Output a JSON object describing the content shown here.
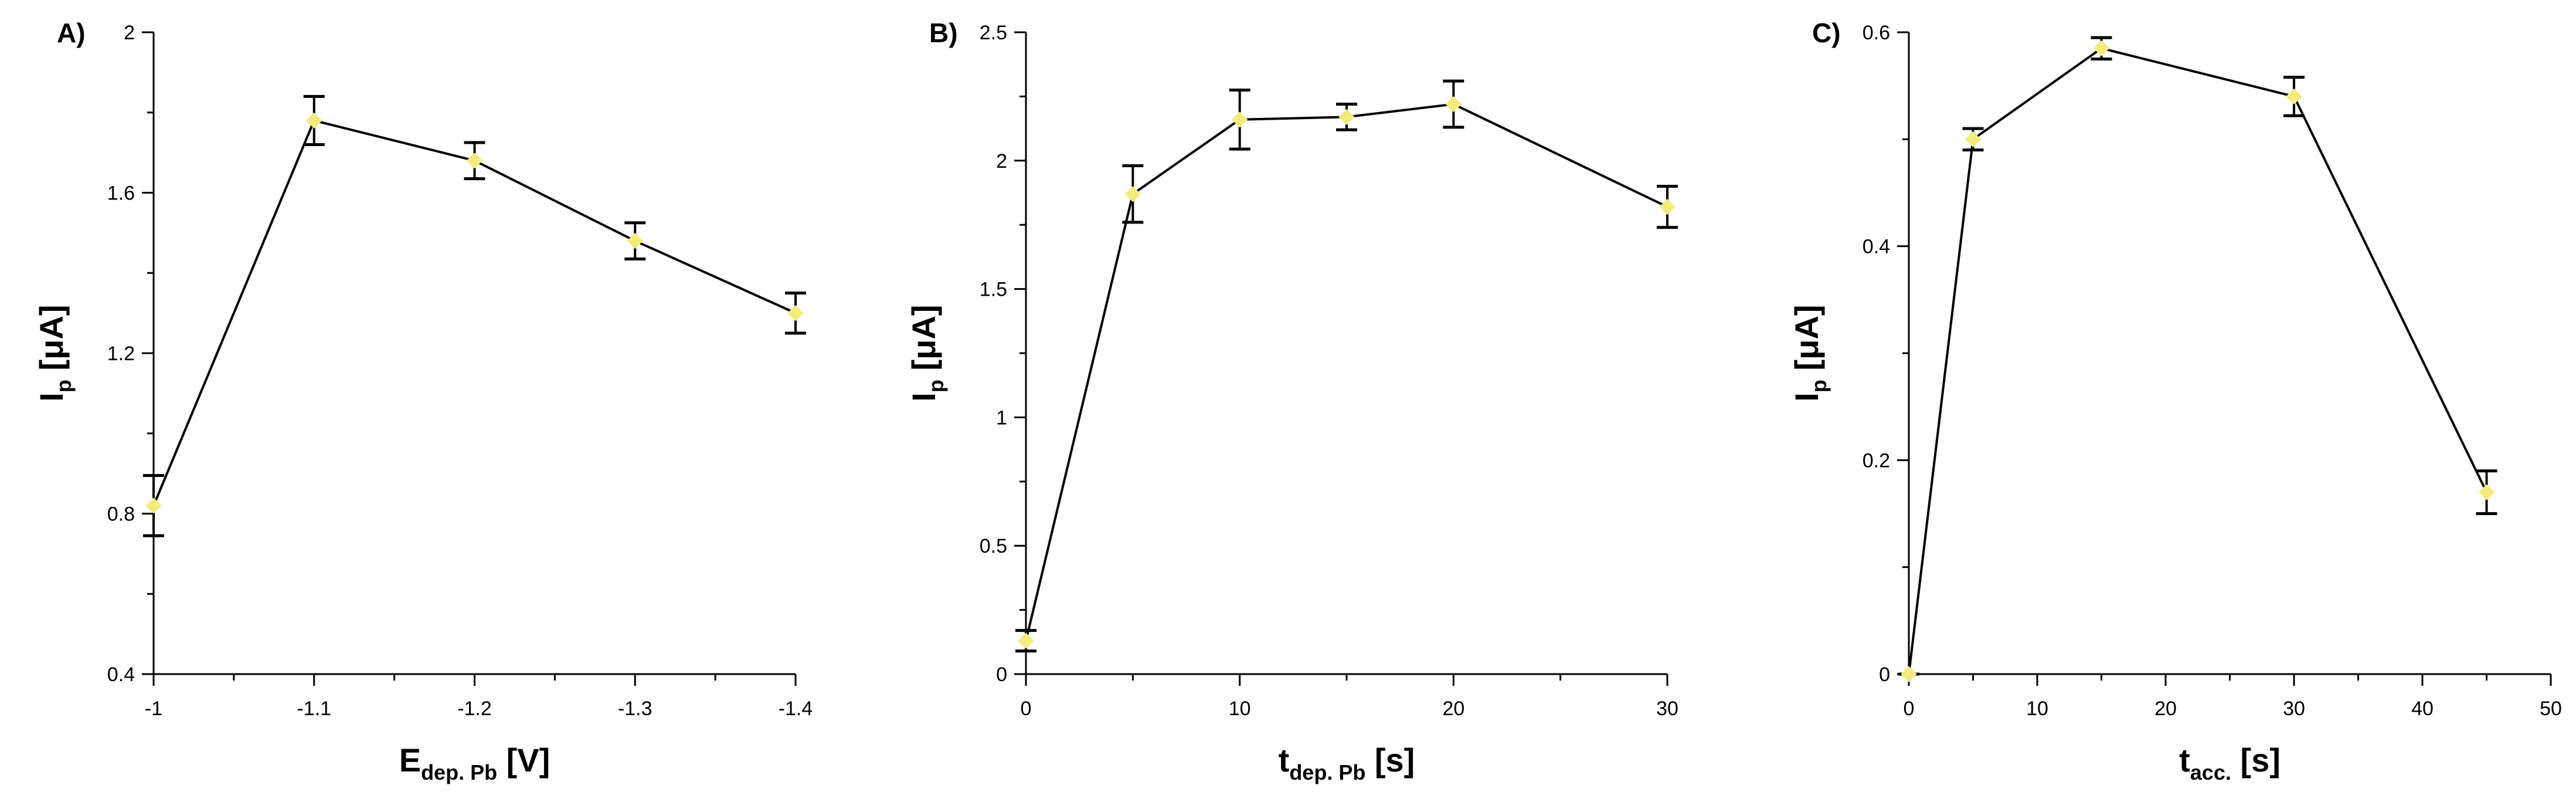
{
  "figure": {
    "colors": {
      "axis": "#000000",
      "line": "#000000",
      "marker": "#f3ec7c",
      "background": "#ffffff"
    }
  },
  "chart_data": [
    {
      "type": "line",
      "panel_label": "A)",
      "xlabel": {
        "main": "E",
        "sub": "dep. Pb",
        "suffix": " [V]"
      },
      "ylabel": {
        "main": "I",
        "sub": "p",
        "suffix": " [μA]"
      },
      "x": [
        -1,
        -1.1,
        -1.2,
        -1.3,
        -1.4
      ],
      "x_tick_labels": [
        "-1",
        "-1.1",
        "-1.2",
        "-1.3",
        "-1.4"
      ],
      "xlim": [
        -1,
        -1.4
      ],
      "x_reversed": true,
      "y": [
        0.82,
        1.78,
        1.68,
        1.48,
        1.3
      ],
      "yerr": [
        0.075,
        0.06,
        0.045,
        0.045,
        0.05
      ],
      "ylim": [
        0.4,
        2.0
      ],
      "y_tick_labels": [
        "0.4",
        "0.8",
        "1.2",
        "1.6",
        "2"
      ],
      "y_ticks": [
        0.4,
        0.8,
        1.2,
        1.6,
        2.0
      ],
      "x_minor_ticks": [
        -1.05,
        -1.15,
        -1.25,
        -1.35
      ],
      "y_minor_ticks": [
        0.6,
        1.0,
        1.4,
        1.8
      ],
      "grid": false
    },
    {
      "type": "line",
      "panel_label": "B)",
      "xlabel": {
        "main": "t",
        "sub": "dep. Pb",
        "suffix": " [s]"
      },
      "ylabel": {
        "main": "I",
        "sub": "p",
        "suffix": " [μA]"
      },
      "x": [
        0,
        5,
        10,
        15,
        20,
        30
      ],
      "x_tick_labels": [
        "0",
        "10",
        "20",
        "30"
      ],
      "x_ticks": [
        0,
        10,
        20,
        30
      ],
      "x_minor_ticks": [
        5,
        15,
        25
      ],
      "xlim": [
        0,
        30
      ],
      "y": [
        0.13,
        1.87,
        2.16,
        2.17,
        2.22,
        1.82
      ],
      "yerr": [
        0.04,
        0.11,
        0.115,
        0.05,
        0.09,
        0.08
      ],
      "ylim": [
        0,
        2.5
      ],
      "y_tick_labels": [
        "0",
        "0.5",
        "1",
        "1.5",
        "2",
        "2.5"
      ],
      "y_ticks": [
        0,
        0.5,
        1.0,
        1.5,
        2.0,
        2.5
      ],
      "y_minor_ticks": [
        0.25,
        0.75,
        1.25,
        1.75,
        2.25
      ],
      "grid": false
    },
    {
      "type": "line",
      "panel_label": "C)",
      "xlabel": {
        "main": "t",
        "sub": "acc.",
        "suffix": " [s]"
      },
      "ylabel": {
        "main": "I",
        "sub": "p",
        "suffix": " [μA]"
      },
      "x": [
        0,
        5,
        15,
        30,
        45
      ],
      "x_tick_labels": [
        "0",
        "10",
        "20",
        "30",
        "40",
        "50"
      ],
      "x_ticks": [
        0,
        10,
        20,
        30,
        40,
        50
      ],
      "x_minor_ticks": [
        5,
        15,
        25,
        35,
        45
      ],
      "xlim": [
        0,
        50
      ],
      "y": [
        0.0,
        0.5,
        0.585,
        0.54,
        0.17
      ],
      "yerr": [
        0.0,
        0.01,
        0.01,
        0.018,
        0.02
      ],
      "ylim": [
        0,
        0.6
      ],
      "y_tick_labels": [
        "0",
        "0.2",
        "0.4",
        "0.6"
      ],
      "y_ticks": [
        0,
        0.2,
        0.4,
        0.6
      ],
      "y_minor_ticks": [
        0.1,
        0.3,
        0.5
      ],
      "grid": false
    }
  ]
}
